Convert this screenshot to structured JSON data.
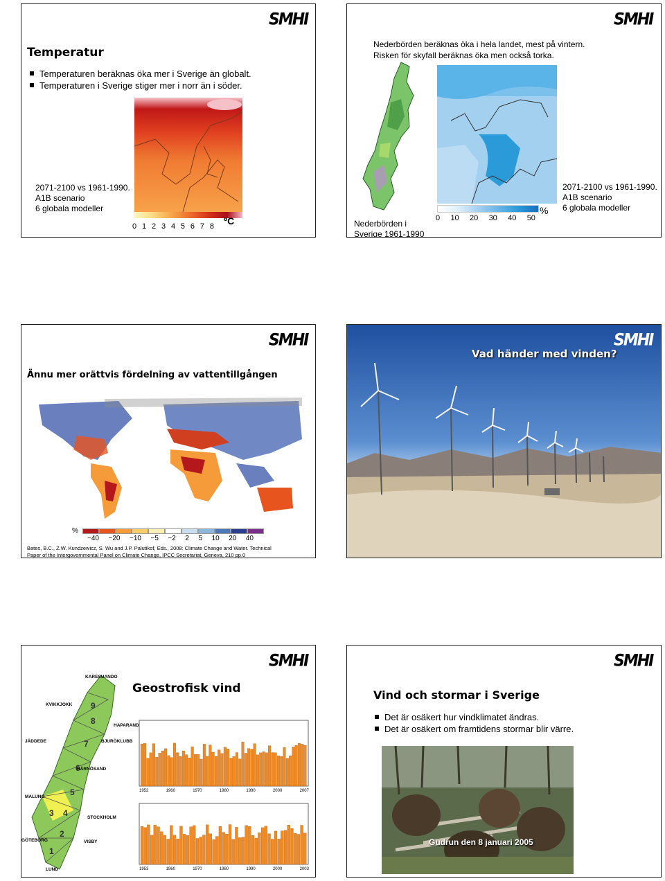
{
  "logo": "SMHI",
  "slide1": {
    "title": "Temperatur",
    "bullets": [
      "Temperaturen beräknas öka mer i Sverige än globalt.",
      "Temperaturen i Sverige stiger mer i norr än i söder."
    ],
    "caption": [
      "2071-2100 vs 1961-1990.",
      "A1B scenario",
      "6 globala modeller"
    ],
    "scale_ticks": [
      "0",
      "1",
      "2",
      "3",
      "4",
      "5",
      "6",
      "7",
      "8"
    ],
    "unit": "ºC"
  },
  "slide2": {
    "lines": [
      "Nederbörden beräknas öka i hela landet, mest på vintern.",
      "Risken för skyfall beräknas öka men också torka."
    ],
    "sweden_caption": [
      "Nederbörden i",
      "Sverige 1961-1990"
    ],
    "scale_ticks": [
      "0",
      "10",
      "20",
      "30",
      "40",
      "50"
    ],
    "unit": "%",
    "caption": [
      "2071-2100 vs 1961-1990.",
      "A1B scenario",
      "6 globala modeller"
    ]
  },
  "slide3": {
    "title": "Ännu mer orättvis fördelning av vattentillgången",
    "unit": "%",
    "scale_ticks": [
      "−40",
      "−20",
      "−10",
      "−5",
      "−2",
      "2",
      "5",
      "10",
      "20",
      "40"
    ],
    "scale_colors": [
      "#b5181b",
      "#e8541e",
      "#f59b3a",
      "#fbcd6a",
      "#fdf0b5",
      "#ffffff",
      "#c9def0",
      "#8db6dd",
      "#4a78b8",
      "#2a3d8f",
      "#7b2d8c"
    ],
    "citation_1": "Bates, B.C., Z.W. Kundzewicz, S. Wu and J.P. Palutikof, Eds., 2008: Climate Change and Water. Technical",
    "citation_2": "Paper of the Intergovernmental Panel on Climate Change, IPCC Secretariat, Geneva, 210 pp.0"
  },
  "slide4": {
    "title": "Vad händer med vinden?"
  },
  "slide5": {
    "title": "Geostrofisk vind",
    "stations": [
      "KARESUANDO",
      "KVIKKJOKK",
      "HAPARANDA",
      "JÄDDEDE",
      "BJURÖKLUBB",
      "HÄRNÖSAND",
      "MALUNG",
      "STOCKHOLM",
      "GÖTEBORG",
      "VISBY",
      "LUND"
    ],
    "regions": [
      "9",
      "8",
      "7",
      "6",
      "5",
      "4",
      "3",
      "2",
      "1"
    ],
    "chart_top_xticks": [
      "1952",
      "1960",
      "1970",
      "1980",
      "1990",
      "2000",
      "2007"
    ],
    "chart_bottom_xticks": [
      "1953",
      "1960",
      "1970",
      "1980",
      "1990",
      "2000",
      "2003"
    ]
  },
  "slide6": {
    "title": "Vind och stormar i Sverige",
    "bullets": [
      "Det är osäkert hur vindklimatet ändras.",
      "Det är osäkert om framtidens stormar blir värre."
    ],
    "photo_caption": "Gudrun den 8 januari 2005"
  }
}
